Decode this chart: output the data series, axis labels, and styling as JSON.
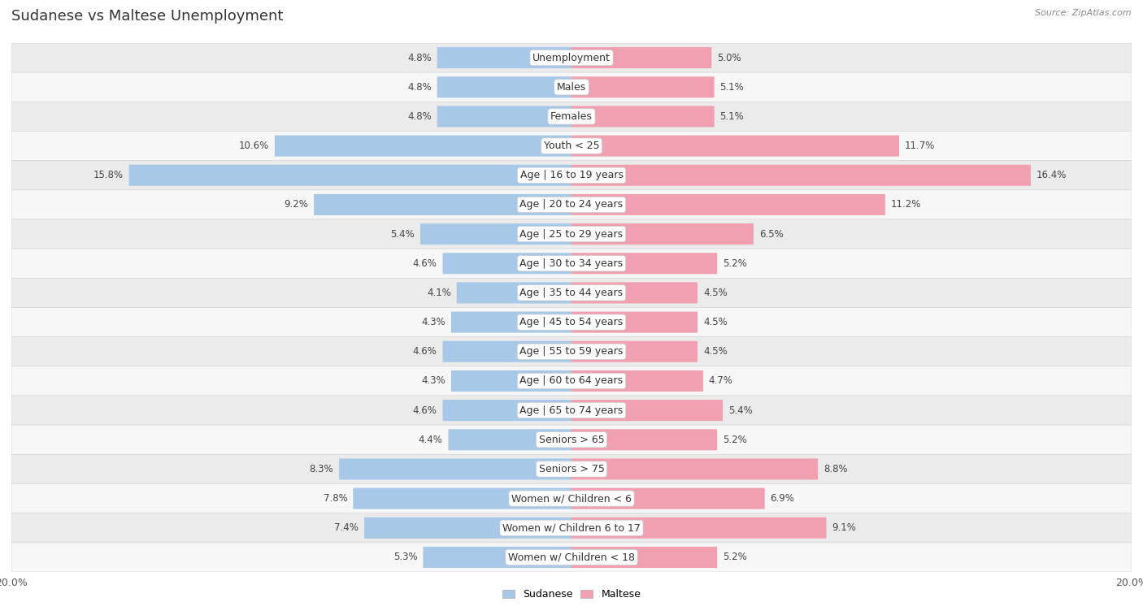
{
  "title": "Sudanese vs Maltese Unemployment",
  "source": "Source: ZipAtlas.com",
  "categories": [
    "Unemployment",
    "Males",
    "Females",
    "Youth < 25",
    "Age | 16 to 19 years",
    "Age | 20 to 24 years",
    "Age | 25 to 29 years",
    "Age | 30 to 34 years",
    "Age | 35 to 44 years",
    "Age | 45 to 54 years",
    "Age | 55 to 59 years",
    "Age | 60 to 64 years",
    "Age | 65 to 74 years",
    "Seniors > 65",
    "Seniors > 75",
    "Women w/ Children < 6",
    "Women w/ Children 6 to 17",
    "Women w/ Children < 18"
  ],
  "sudanese": [
    4.8,
    4.8,
    4.8,
    10.6,
    15.8,
    9.2,
    5.4,
    4.6,
    4.1,
    4.3,
    4.6,
    4.3,
    4.6,
    4.4,
    8.3,
    7.8,
    7.4,
    5.3
  ],
  "maltese": [
    5.0,
    5.1,
    5.1,
    11.7,
    16.4,
    11.2,
    6.5,
    5.2,
    4.5,
    4.5,
    4.5,
    4.7,
    5.4,
    5.2,
    8.8,
    6.9,
    9.1,
    5.2
  ],
  "sudanese_color": "#a8c8e8",
  "maltese_color": "#f0a0b0",
  "row_bg_light": "#ebebeb",
  "row_bg_white": "#f7f7f7",
  "row_border": "#d8d8d8",
  "max_val": 20.0,
  "legend_sudanese": "Sudanese",
  "legend_maltese": "Maltese",
  "title_fontsize": 13,
  "label_fontsize": 9,
  "value_fontsize": 8.5,
  "category_fontsize": 9
}
